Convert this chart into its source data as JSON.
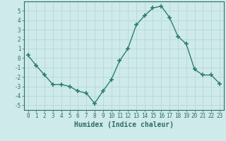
{
  "x": [
    0,
    1,
    2,
    3,
    4,
    5,
    6,
    7,
    8,
    9,
    10,
    11,
    12,
    13,
    14,
    15,
    16,
    17,
    18,
    19,
    20,
    21,
    22,
    23
  ],
  "y": [
    0.3,
    -0.8,
    -1.8,
    -2.8,
    -2.8,
    -3.0,
    -3.5,
    -3.7,
    -4.8,
    -3.5,
    -2.3,
    -0.3,
    1.0,
    3.5,
    4.5,
    5.3,
    5.5,
    4.3,
    2.3,
    1.5,
    -1.2,
    -1.8,
    -1.8,
    -2.7
  ],
  "line_color": "#2e7d6e",
  "marker": "+",
  "markersize": 4.0,
  "linewidth": 1.0,
  "xlabel": "Humidex (Indice chaleur)",
  "xlim": [
    -0.5,
    23.5
  ],
  "ylim": [
    -5.5,
    6.0
  ],
  "yticks": [
    -5,
    -4,
    -3,
    -2,
    -1,
    0,
    1,
    2,
    3,
    4,
    5
  ],
  "xticks": [
    0,
    1,
    2,
    3,
    4,
    5,
    6,
    7,
    8,
    9,
    10,
    11,
    12,
    13,
    14,
    15,
    16,
    17,
    18,
    19,
    20,
    21,
    22,
    23
  ],
  "bg_color": "#ceeaea",
  "grid_color": "#b8d8d8",
  "tick_fontsize": 5.5,
  "xlabel_fontsize": 7.0,
  "tick_color": "#2e6e65",
  "markeredgewidth": 1.2
}
